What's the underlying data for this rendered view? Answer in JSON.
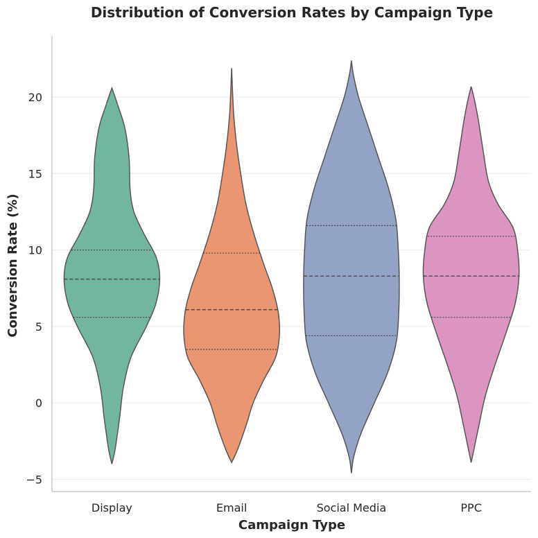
{
  "chart_data": {
    "type": "violin",
    "title": "Distribution of Conversion Rates by Campaign Type",
    "xlabel": "Campaign Type",
    "ylabel": "Conversion Rate (%)",
    "ylim": [
      -5.8,
      24.0
    ],
    "yticks": [
      -5,
      0,
      5,
      10,
      15,
      20
    ],
    "grid": "y",
    "categories": [
      "Display",
      "Email",
      "Social Media",
      "PPC"
    ],
    "colors": [
      "#73b69f",
      "#eb9673",
      "#93a3c5",
      "#dc94c1"
    ],
    "outline_color": "#555555",
    "violins": [
      {
        "name": "Display",
        "min": -4.0,
        "max": 20.6,
        "q1": 5.6,
        "median": 8.1,
        "q3": 10.0,
        "profile": [
          [
            -4.0,
            0.0
          ],
          [
            -3.0,
            0.07
          ],
          [
            -1.0,
            0.16
          ],
          [
            1.0,
            0.24
          ],
          [
            3.0,
            0.4
          ],
          [
            5.0,
            0.72
          ],
          [
            6.5,
            0.92
          ],
          [
            8.1,
            1.0
          ],
          [
            9.5,
            0.93
          ],
          [
            11.0,
            0.68
          ],
          [
            12.5,
            0.46
          ],
          [
            14.0,
            0.38
          ],
          [
            16.0,
            0.36
          ],
          [
            18.0,
            0.27
          ],
          [
            19.5,
            0.12
          ],
          [
            20.6,
            0.0
          ]
        ]
      },
      {
        "name": "Email",
        "min": -3.9,
        "max": 21.9,
        "q1": 3.5,
        "median": 6.1,
        "q3": 9.8,
        "profile": [
          [
            -3.9,
            0.0
          ],
          [
            -3.0,
            0.13
          ],
          [
            -1.5,
            0.3
          ],
          [
            0.0,
            0.45
          ],
          [
            1.5,
            0.67
          ],
          [
            3.0,
            0.92
          ],
          [
            4.5,
            1.0
          ],
          [
            6.0,
            0.97
          ],
          [
            7.5,
            0.85
          ],
          [
            9.0,
            0.68
          ],
          [
            11.0,
            0.47
          ],
          [
            13.0,
            0.3
          ],
          [
            15.0,
            0.19
          ],
          [
            17.0,
            0.1
          ],
          [
            19.0,
            0.04
          ],
          [
            21.9,
            0.0
          ]
        ]
      },
      {
        "name": "Social Media",
        "min": -4.6,
        "max": 22.4,
        "q1": 4.4,
        "median": 8.3,
        "q3": 11.6,
        "profile": [
          [
            -4.6,
            0.0
          ],
          [
            -3.5,
            0.05
          ],
          [
            -2.0,
            0.2
          ],
          [
            0.0,
            0.48
          ],
          [
            2.0,
            0.76
          ],
          [
            4.0,
            0.94
          ],
          [
            6.0,
            0.99
          ],
          [
            8.0,
            1.0
          ],
          [
            10.0,
            0.98
          ],
          [
            12.0,
            0.93
          ],
          [
            14.0,
            0.78
          ],
          [
            16.0,
            0.57
          ],
          [
            18.0,
            0.36
          ],
          [
            20.0,
            0.15
          ],
          [
            21.5,
            0.04
          ],
          [
            22.4,
            0.0
          ]
        ]
      },
      {
        "name": "PPC",
        "min": -3.9,
        "max": 20.7,
        "q1": 5.6,
        "median": 8.3,
        "q3": 10.9,
        "profile": [
          [
            -3.9,
            0.0
          ],
          [
            -3.0,
            0.06
          ],
          [
            -1.5,
            0.16
          ],
          [
            0.5,
            0.3
          ],
          [
            2.5,
            0.5
          ],
          [
            4.5,
            0.72
          ],
          [
            6.5,
            0.92
          ],
          [
            8.3,
            1.0
          ],
          [
            10.0,
            0.97
          ],
          [
            11.5,
            0.87
          ],
          [
            13.0,
            0.56
          ],
          [
            14.5,
            0.36
          ],
          [
            16.5,
            0.25
          ],
          [
            18.5,
            0.15
          ],
          [
            19.8,
            0.07
          ],
          [
            20.7,
            0.0
          ]
        ]
      }
    ]
  }
}
